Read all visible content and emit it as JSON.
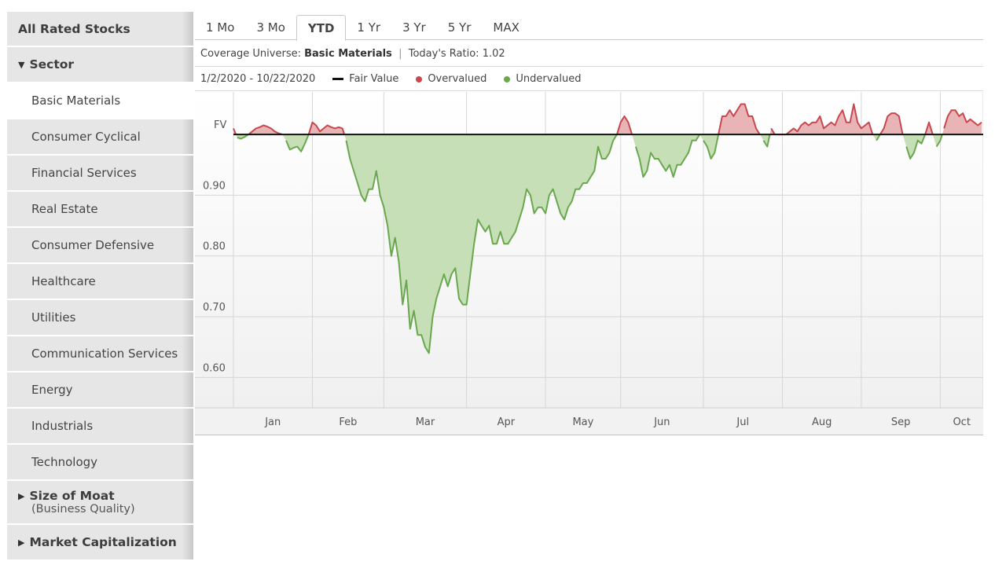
{
  "sidebar": {
    "all_rated": "All Rated Stocks",
    "sector_title": "Sector",
    "sectors": [
      "Basic Materials",
      "Consumer Cyclical",
      "Financial Services",
      "Real Estate",
      "Consumer Defensive",
      "Healthcare",
      "Utilities",
      "Communication Services",
      "Energy",
      "Industrials",
      "Technology"
    ],
    "moat_title": "Size of Moat",
    "moat_sub": "(Business Quality)",
    "market_cap_title": "Market Capitalization",
    "icons": {
      "expanded": "triangle-down-icon",
      "collapsed": "triangle-right-icon"
    }
  },
  "tabs": [
    "1 Mo",
    "3 Mo",
    "YTD",
    "1 Yr",
    "3 Yr",
    "5 Yr",
    "MAX"
  ],
  "active_tab": "YTD",
  "info": {
    "coverage_label": "Coverage Universe:",
    "coverage_value": "Basic Materials",
    "separator": "|",
    "ratio_label": "Today's Ratio:",
    "ratio_value": "1.02"
  },
  "legend": {
    "date_range": "1/2/2020 - 10/22/2020",
    "fair_value": "Fair Value",
    "overvalued": "Overvalued",
    "undervalued": "Undervalued"
  },
  "colors": {
    "overvalued_line": "#c9474f",
    "overvalued_fill": "#e8b4b6",
    "undervalued_line": "#6aa84f",
    "undervalued_fill": "#c7dfb6",
    "fair_value": "#111111"
  },
  "chart_data": {
    "type": "area",
    "title": "",
    "xlabel": "",
    "ylabel": "",
    "ylim": [
      0.55,
      1.07
    ],
    "fair_value": 1.0,
    "y_ticks": [
      {
        "label": "0.60",
        "value": 0.6
      },
      {
        "label": "0.70",
        "value": 0.7
      },
      {
        "label": "0.80",
        "value": 0.8
      },
      {
        "label": "0.90",
        "value": 0.9
      },
      {
        "label": "FV",
        "value": 1.0
      }
    ],
    "months": [
      "Jan",
      "Feb",
      "Mar",
      "Apr",
      "May",
      "Jun",
      "Jul",
      "Aug",
      "Sep",
      "Oct"
    ],
    "x_unit": "trading day index (Jan 2 = 0)",
    "series": [
      {
        "values": [
          1.01,
          0.995,
          0.993,
          0.996,
          1.0,
          1.005,
          1.01,
          1.012,
          1.015,
          1.013,
          1.01,
          1.005,
          1.002,
          1.0,
          0.99,
          0.975,
          0.978,
          0.98,
          0.972,
          0.985,
          1.0,
          1.02,
          1.015,
          1.005,
          1.01,
          1.015,
          1.012,
          1.01,
          1.012,
          1.01,
          0.99,
          0.96,
          0.94,
          0.92,
          0.9,
          0.89,
          0.91,
          0.91,
          0.94,
          0.9,
          0.88,
          0.85,
          0.8,
          0.83,
          0.79,
          0.72,
          0.76,
          0.68,
          0.71,
          0.67,
          0.67,
          0.65,
          0.64,
          0.7,
          0.73,
          0.75,
          0.77,
          0.75,
          0.77,
          0.78,
          0.73,
          0.72,
          0.72,
          0.77,
          0.82,
          0.86,
          0.85,
          0.84,
          0.85,
          0.82,
          0.82,
          0.84,
          0.82,
          0.82,
          0.83,
          0.84,
          0.86,
          0.88,
          0.91,
          0.9,
          0.87,
          0.88,
          0.88,
          0.87,
          0.9,
          0.91,
          0.89,
          0.87,
          0.86,
          0.88,
          0.89,
          0.91,
          0.91,
          0.92,
          0.92,
          0.93,
          0.94,
          0.98,
          0.96,
          0.96,
          0.97,
          0.99,
          1.0,
          1.02,
          1.03,
          1.02,
          1.0,
          0.98,
          0.96,
          0.93,
          0.94,
          0.97,
          0.96,
          0.96,
          0.95,
          0.94,
          0.95,
          0.93,
          0.95,
          0.95,
          0.96,
          0.97,
          0.99,
          0.99,
          1.0,
          0.99,
          0.98,
          0.96,
          0.97,
          1.0,
          1.03,
          1.03,
          1.04,
          1.03,
          1.04,
          1.05,
          1.05,
          1.03,
          1.03,
          1.01,
          1.0,
          0.99,
          0.98,
          1.01,
          1.0,
          1.0,
          1.0,
          1.0,
          1.005,
          1.01,
          1.005,
          1.015,
          1.02,
          1.015,
          1.02,
          1.02,
          1.03,
          1.01,
          1.015,
          1.02,
          1.015,
          1.03,
          1.04,
          1.02,
          1.02,
          1.05,
          1.02,
          1.01,
          1.015,
          1.02,
          1.0,
          0.99,
          1.0,
          1.01,
          1.03,
          1.035,
          1.035,
          1.03,
          1.0,
          0.98,
          0.96,
          0.97,
          0.99,
          0.985,
          1.0,
          1.02,
          1.0,
          0.98,
          0.99,
          1.01,
          1.03,
          1.04,
          1.04,
          1.03,
          1.035,
          1.02,
          1.025,
          1.02,
          1.015,
          1.02
        ]
      }
    ]
  }
}
